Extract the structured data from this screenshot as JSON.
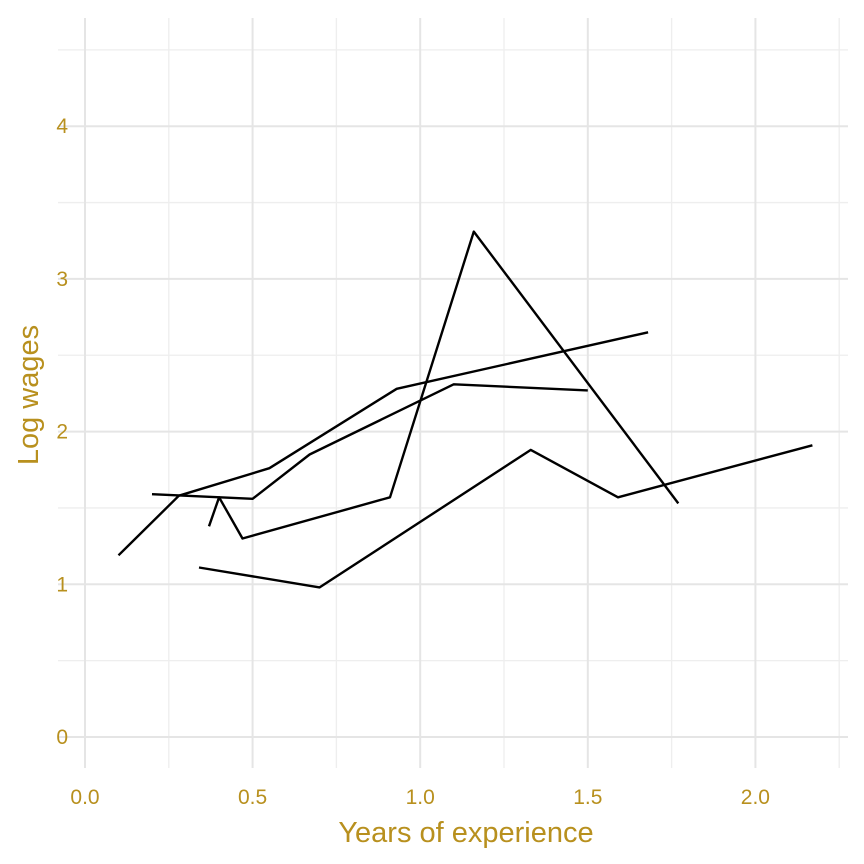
{
  "chart_data": {
    "type": "line",
    "xlabel": "Years of experience",
    "ylabel": "Log wages",
    "xlim": [
      -0.02,
      2.27
    ],
    "ylim": [
      -0.2,
      4.57
    ],
    "x_ticks": [
      0.0,
      0.5,
      1.0,
      1.5,
      2.0
    ],
    "x_tick_labels": [
      "0.0",
      "0.5",
      "1.0",
      "1.5",
      "2.0"
    ],
    "x_minor_ticks": [
      0.25,
      0.75,
      1.25,
      1.75,
      2.25
    ],
    "y_ticks": [
      0,
      1,
      2,
      3,
      4
    ],
    "y_tick_labels": [
      "0",
      "1",
      "2",
      "3",
      "4"
    ],
    "y_minor_ticks": [
      0.5,
      1.5,
      2.5,
      3.5,
      4.5
    ],
    "grid": true,
    "legend": "none",
    "colors": {
      "line": "#000000",
      "text": "#B8901E",
      "grid_major": "#e5e5e5",
      "grid_minor": "#eeeeee",
      "background": "#ffffff"
    },
    "series": [
      {
        "x": [
          0.1,
          0.28,
          0.55,
          0.93,
          1.68
        ],
        "y": [
          1.19,
          1.58,
          1.76,
          2.28,
          2.65
        ]
      },
      {
        "x": [
          0.2,
          0.5,
          0.67,
          1.1,
          1.5
        ],
        "y": [
          1.59,
          1.56,
          1.85,
          2.31,
          2.27
        ]
      },
      {
        "x": [
          0.37,
          0.4,
          0.47,
          0.91,
          1.16,
          1.77
        ],
        "y": [
          1.38,
          1.57,
          1.3,
          1.57,
          3.31,
          1.53
        ]
      },
      {
        "x": [
          0.34,
          0.7,
          1.33,
          1.59,
          2.17
        ],
        "y": [
          1.11,
          0.98,
          1.88,
          1.57,
          1.91
        ]
      }
    ]
  }
}
